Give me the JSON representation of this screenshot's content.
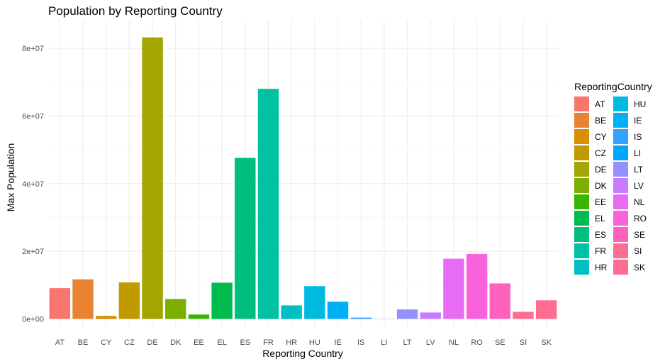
{
  "chart_data": {
    "type": "bar",
    "title": "Population by Reporting Country",
    "xlabel": "Reporting Country",
    "ylabel": "Max Population",
    "ylim": [
      0,
      87000000
    ],
    "y_ticks": [
      0,
      20000000,
      40000000,
      60000000,
      80000000
    ],
    "y_tick_labels": [
      "0e+00",
      "2e+07",
      "4e+07",
      "6e+07",
      "8e+07"
    ],
    "grid": true,
    "legend_title": "ReportingCountry",
    "legend_position": "right",
    "categories": [
      "AT",
      "BE",
      "CY",
      "CZ",
      "DE",
      "DK",
      "EE",
      "EL",
      "ES",
      "FR",
      "HR",
      "HU",
      "IE",
      "IS",
      "LI",
      "LT",
      "LV",
      "NL",
      "RO",
      "SE",
      "SI",
      "SK"
    ],
    "values": [
      9100000,
      11700000,
      900000,
      10800000,
      83200000,
      5900000,
      1300000,
      10700000,
      47600000,
      68000000,
      4000000,
      9700000,
      5100000,
      400000,
      40000,
      2800000,
      1900000,
      17800000,
      19200000,
      10500000,
      2100000,
      5500000
    ],
    "colors": [
      "#F8766D",
      "#EA8331",
      "#D89000",
      "#C09B00",
      "#A3A500",
      "#7CAE00",
      "#39B600",
      "#00BB4E",
      "#00BF7D",
      "#00C1A3",
      "#00BFC4",
      "#00BAE0",
      "#00B0F6",
      "#35A2FF",
      "#00A5FF",
      "#9590FF",
      "#C77CFF",
      "#E76BF3",
      "#FA62DB",
      "#FF62BC",
      "#FF6C91",
      "#FF6C91"
    ]
  }
}
